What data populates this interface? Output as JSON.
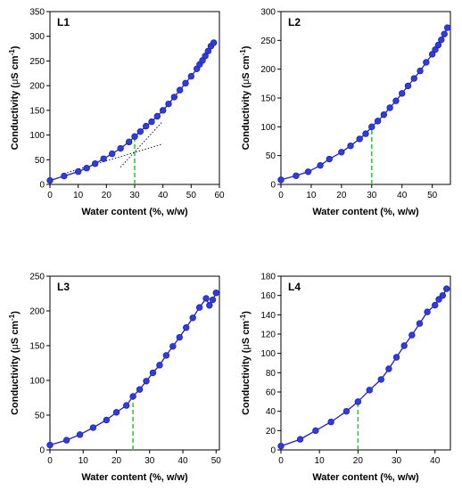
{
  "colors": {
    "series": "#1f1fbf",
    "marker": "#2f3fd6",
    "guide": "#2ecc40",
    "tangent": "#000000"
  },
  "chart_data": [
    {
      "type": "line",
      "panel_label": "L1",
      "xlabel": "Water content (%, w/w)",
      "ylabel_main": "Conductivity (",
      "ylabel_mu": "μ",
      "ylabel_unit": "S cm",
      "ylabel_exp": "-1",
      "ylabel_close": ")",
      "xlim": [
        0,
        60
      ],
      "ylim": [
        0,
        350
      ],
      "xticks": [
        0,
        10,
        20,
        30,
        40,
        50,
        60
      ],
      "yticks": [
        0,
        50,
        100,
        150,
        200,
        250,
        300,
        350
      ],
      "guide_x": 30,
      "tangent_lines": [
        {
          "x": [
            5,
            40
          ],
          "y": [
            22,
            82
          ]
        },
        {
          "x": [
            25,
            40
          ],
          "y": [
            35,
            128
          ]
        }
      ],
      "x": [
        0,
        5,
        10,
        13,
        16,
        19,
        22,
        25,
        28,
        30,
        32,
        34,
        36,
        38,
        40,
        42,
        44,
        46,
        48,
        50,
        52,
        53,
        54,
        55,
        56,
        57,
        58
      ],
      "y": [
        8,
        17,
        26,
        33,
        42,
        52,
        62,
        73,
        86,
        97,
        107,
        118,
        127,
        138,
        150,
        163,
        177,
        191,
        205,
        219,
        234,
        243,
        251,
        260,
        270,
        280,
        287
      ]
    },
    {
      "type": "line",
      "panel_label": "L2",
      "xlabel": "Water content (%, w/w)",
      "ylabel_main": "Conductivity (",
      "ylabel_mu": "μ",
      "ylabel_unit": "S cm",
      "ylabel_exp": "-1",
      "ylabel_close": ")",
      "xlim": [
        0,
        56
      ],
      "ylim": [
        0,
        300
      ],
      "xticks": [
        0,
        10,
        20,
        30,
        40,
        50
      ],
      "yticks": [
        0,
        50,
        100,
        150,
        200,
        250,
        300
      ],
      "guide_x": 30,
      "tangent_lines": [],
      "x": [
        0,
        5,
        9,
        13,
        16,
        20,
        23,
        26,
        28,
        30,
        32,
        34,
        36,
        38,
        40,
        42,
        44,
        46,
        48,
        50,
        51,
        52,
        53,
        54,
        55
      ],
      "y": [
        8,
        15,
        22,
        33,
        44,
        56,
        67,
        79,
        88,
        100,
        110,
        121,
        133,
        145,
        158,
        171,
        184,
        197,
        212,
        226,
        234,
        242,
        251,
        261,
        272
      ]
    },
    {
      "type": "line",
      "panel_label": "L3",
      "xlabel": "Water content (%, w/w)",
      "ylabel_main": "Conductivity (",
      "ylabel_mu": "μ",
      "ylabel_unit": "S cm",
      "ylabel_exp": "-1",
      "ylabel_close": ")",
      "xlim": [
        0,
        51
      ],
      "ylim": [
        0,
        250
      ],
      "xticks": [
        0,
        10,
        20,
        30,
        40,
        50
      ],
      "yticks": [
        0,
        50,
        100,
        150,
        200,
        250
      ],
      "guide_x": 25,
      "tangent_lines": [],
      "x": [
        0,
        5,
        9,
        13,
        17,
        20,
        23,
        25,
        27,
        29,
        31,
        33,
        35,
        37,
        39,
        41,
        43,
        45,
        47,
        48,
        49,
        50
      ],
      "y": [
        7,
        14,
        22,
        32,
        43,
        54,
        64,
        77,
        87,
        99,
        111,
        122,
        136,
        149,
        162,
        176,
        190,
        205,
        218,
        208,
        216,
        226
      ]
    },
    {
      "type": "line",
      "panel_label": "L4",
      "xlabel": "Water content (%, w/w)",
      "ylabel_main": "Conductivity (",
      "ylabel_mu": "μ",
      "ylabel_unit": "S cm",
      "ylabel_exp": "-1",
      "ylabel_close": ")",
      "xlim": [
        0,
        44
      ],
      "ylim": [
        0,
        180
      ],
      "xticks": [
        0,
        10,
        20,
        30,
        40
      ],
      "yticks": [
        0,
        20,
        40,
        60,
        80,
        100,
        120,
        140,
        160,
        180
      ],
      "guide_x": 20,
      "tangent_lines": [],
      "x": [
        0,
        5,
        9,
        13,
        17,
        20,
        23,
        26,
        28,
        30,
        32,
        34,
        36,
        38,
        40,
        41,
        42,
        43
      ],
      "y": [
        4,
        11,
        20,
        29,
        40,
        50,
        62,
        73,
        84,
        96,
        108,
        119,
        131,
        143,
        150,
        156,
        160,
        167
      ]
    }
  ]
}
